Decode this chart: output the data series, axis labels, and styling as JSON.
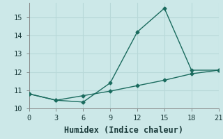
{
  "xlabel": "Humidex (Indice chaleur)",
  "background_color": "#cce8e8",
  "grid_color": "#b8d8d8",
  "line_color": "#1a6b5e",
  "x_line1": [
    0,
    3,
    6,
    9,
    12,
    15,
    18,
    21
  ],
  "y_line1": [
    10.8,
    10.45,
    10.35,
    11.4,
    14.2,
    15.5,
    12.1,
    12.1
  ],
  "x_line2": [
    0,
    3,
    6,
    9,
    12,
    15,
    18,
    21
  ],
  "y_line2": [
    10.8,
    10.45,
    10.7,
    10.95,
    11.25,
    11.55,
    11.9,
    12.1
  ],
  "xlim": [
    0,
    21
  ],
  "ylim": [
    10,
    15.8
  ],
  "xticks": [
    0,
    3,
    6,
    9,
    12,
    15,
    18,
    21
  ],
  "yticks": [
    10,
    11,
    12,
    13,
    14,
    15
  ],
  "marker": "D",
  "marker_size": 2.5,
  "line_width": 1.0,
  "tick_fontsize": 7.5,
  "xlabel_fontsize": 8.5
}
